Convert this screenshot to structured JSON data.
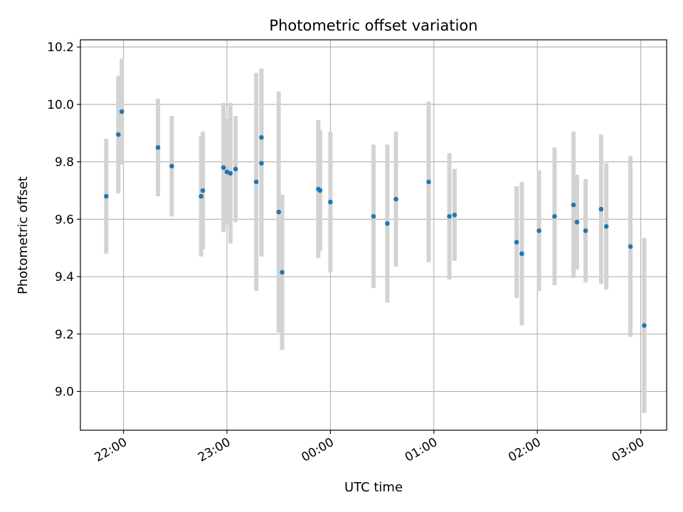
{
  "chart_data": {
    "type": "scatter",
    "title": "Photometric offset variation",
    "xlabel": "UTC time",
    "ylabel": "Photometric offset",
    "xlim": [
      "21:35",
      "03:15"
    ],
    "ylim": [
      8.865,
      10.225
    ],
    "grid": true,
    "x_ticks": [
      "22:00",
      "23:00",
      "00:00",
      "01:00",
      "02:00",
      "03:00"
    ],
    "y_ticks": [
      "9.0",
      "9.2",
      "9.4",
      "9.6",
      "9.8",
      "10.0",
      "10.2"
    ],
    "colors": {
      "points": "#1f77b4",
      "error_bars": "#d3d3d3",
      "grid": "#b0b0b0"
    },
    "series": [
      {
        "error_bars": true,
        "points": [
          {
            "x": "21:50",
            "y": 9.68,
            "yerr": 0.2
          },
          {
            "x": "21:57",
            "y": 9.895,
            "yerr": 0.205
          },
          {
            "x": "21:59",
            "y": 9.975,
            "yerr": 0.185
          },
          {
            "x": "22:20",
            "y": 9.85,
            "yerr": 0.17
          },
          {
            "x": "22:28",
            "y": 9.785,
            "yerr": 0.175
          },
          {
            "x": "22:45",
            "y": 9.68,
            "yerr": 0.21
          },
          {
            "x": "22:46",
            "y": 9.7,
            "yerr": 0.205
          },
          {
            "x": "22:58",
            "y": 9.78,
            "yerr": 0.225
          },
          {
            "x": "23:00",
            "y": 9.765,
            "yerr": 0.185
          },
          {
            "x": "23:02",
            "y": 9.76,
            "yerr": 0.245
          },
          {
            "x": "23:05",
            "y": 9.775,
            "yerr": 0.185
          },
          {
            "x": "23:17",
            "y": 9.73,
            "yerr": 0.38
          },
          {
            "x": "23:20",
            "y": 9.885,
            "yerr": 0.24
          },
          {
            "x": "23:20",
            "y": 9.795,
            "yerr": 0.325
          },
          {
            "x": "23:30",
            "y": 9.625,
            "yerr": 0.42
          },
          {
            "x": "23:32",
            "y": 9.415,
            "yerr": 0.27
          },
          {
            "x": "23:53",
            "y": 9.705,
            "yerr": 0.24
          },
          {
            "x": "23:54",
            "y": 9.7,
            "yerr": 0.21
          },
          {
            "x": "00:00",
            "y": 9.66,
            "yerr": 0.245
          },
          {
            "x": "00:25",
            "y": 9.61,
            "yerr": 0.25
          },
          {
            "x": "00:33",
            "y": 9.585,
            "yerr": 0.275
          },
          {
            "x": "00:38",
            "y": 9.67,
            "yerr": 0.235
          },
          {
            "x": "00:57",
            "y": 9.73,
            "yerr": 0.28
          },
          {
            "x": "01:09",
            "y": 9.61,
            "yerr": 0.22
          },
          {
            "x": "01:12",
            "y": 9.615,
            "yerr": 0.16
          },
          {
            "x": "01:48",
            "y": 9.52,
            "yerr": 0.195
          },
          {
            "x": "01:51",
            "y": 9.48,
            "yerr": 0.25
          },
          {
            "x": "02:01",
            "y": 9.56,
            "yerr": 0.21
          },
          {
            "x": "02:10",
            "y": 9.61,
            "yerr": 0.24
          },
          {
            "x": "02:21",
            "y": 9.65,
            "yerr": 0.255
          },
          {
            "x": "02:23",
            "y": 9.59,
            "yerr": 0.165
          },
          {
            "x": "02:28",
            "y": 9.56,
            "yerr": 0.18
          },
          {
            "x": "02:37",
            "y": 9.635,
            "yerr": 0.26
          },
          {
            "x": "02:40",
            "y": 9.575,
            "yerr": 0.22
          },
          {
            "x": "02:54",
            "y": 9.505,
            "yerr": 0.315
          },
          {
            "x": "03:02",
            "y": 9.23,
            "yerr": 0.305
          }
        ]
      }
    ]
  }
}
